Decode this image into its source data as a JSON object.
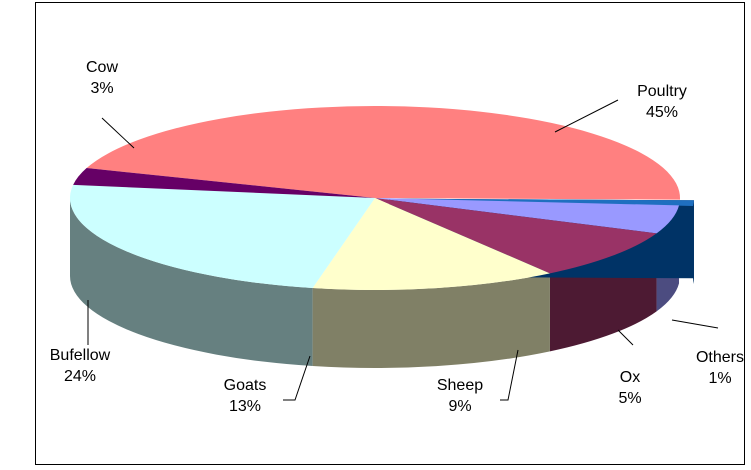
{
  "chart_data": {
    "type": "pie",
    "style": "3d-exploded",
    "title": "",
    "legend": "none",
    "categories": [
      "Poultry",
      "Others",
      "Ox",
      "Sheep",
      "Goats",
      "Bufellow",
      "Cow"
    ],
    "values": [
      45,
      1,
      5,
      9,
      13,
      24,
      3
    ],
    "labels": [
      "45%",
      "1%",
      "5%",
      "9%",
      "13%",
      "24%",
      "3%"
    ],
    "colors": {
      "Poultry": "#ff8080",
      "Others": "#1f6fc0",
      "Ox": "#9999ff",
      "Sheep": "#993366",
      "Goats": "#ffffcc",
      "Bufellow": "#ccffff",
      "Cow": "#660066"
    },
    "side_colors": {
      "Poultry": "#804040",
      "Others": "#003366",
      "Ox": "#4c4c80",
      "Sheep": "#4d1a33",
      "Goats": "#808066",
      "Bufellow": "#668080",
      "Cow": "#330033"
    },
    "exploded": [
      "Others"
    ]
  }
}
